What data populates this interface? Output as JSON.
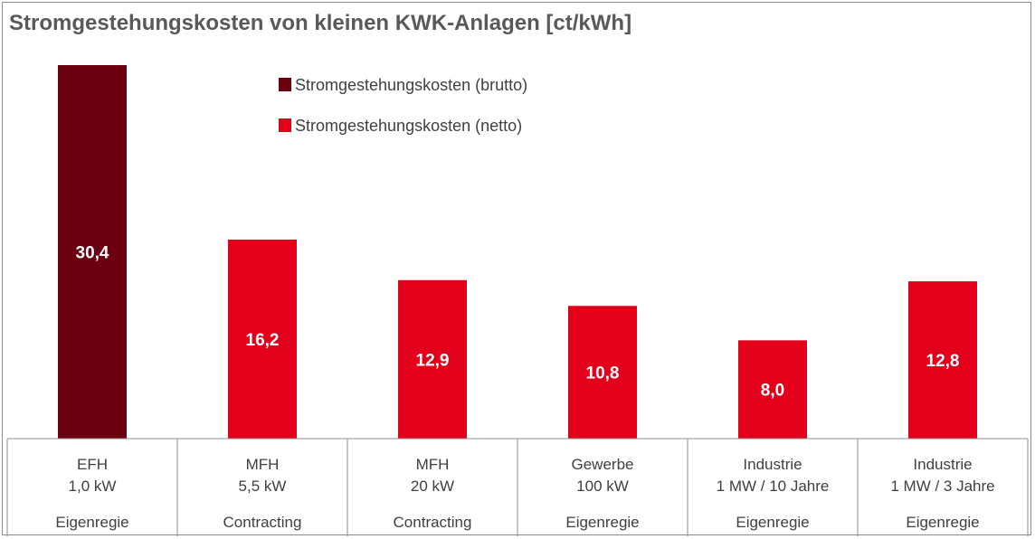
{
  "chart_data": {
    "type": "bar",
    "title": "Stromgestehungskosten von kleinen KWK-Anlagen [ct/kWh]",
    "categories": [
      {
        "line1": "EFH",
        "line2": "1,0 kW",
        "line3": "Eigenregie"
      },
      {
        "line1": "MFH",
        "line2": "5,5 kW",
        "line3": "Contracting"
      },
      {
        "line1": "MFH",
        "line2": "20 kW",
        "line3": "Contracting"
      },
      {
        "line1": "Gewerbe",
        "line2": "100 kW",
        "line3": "Eigenregie"
      },
      {
        "line1": "Industrie",
        "line2": "1 MW / 10 Jahre",
        "line3": "Eigenregie"
      },
      {
        "line1": "Industrie",
        "line2": "1 MW / 3 Jahre",
        "line3": "Eigenregie"
      }
    ],
    "values": [
      30.4,
      16.2,
      12.9,
      10.8,
      8.0,
      12.8
    ],
    "value_labels": [
      "30,4",
      "16,2",
      "12,9",
      "10,8",
      "8,0",
      "12,8"
    ],
    "series_index": [
      0,
      1,
      1,
      1,
      1,
      1
    ],
    "series": [
      {
        "name": "Stromgestehungskosten (brutto)",
        "color": "#6b0010"
      },
      {
        "name": "Stromgestehungskosten (netto)",
        "color": "#e2001a"
      }
    ],
    "ylim": [
      0,
      30.4
    ],
    "legend_position": "top-center",
    "grid": false
  }
}
